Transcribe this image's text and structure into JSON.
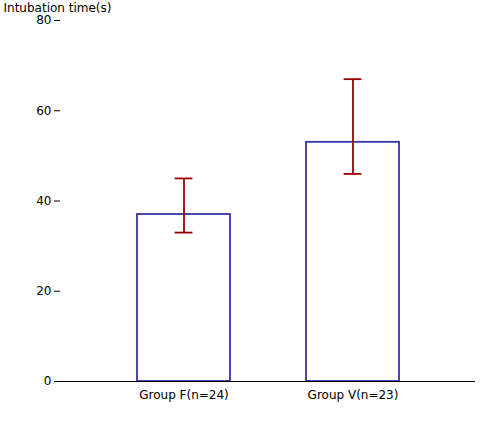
{
  "chart_data": {
    "type": "bar",
    "categories": [
      "Group F(n=24)",
      "Group V(n=23)"
    ],
    "values": [
      37,
      53
    ],
    "color": "#3333AA",
    "error_bars": {
      "lower": [
        33,
        46
      ],
      "upper": [
        45,
        67
      ],
      "color": "#990000"
    },
    "ylabel": "Intubation time(s)",
    "ylim": [
      0,
      80
    ],
    "yticks": [
      0,
      20,
      40,
      60,
      80
    ],
    "grid": false
  }
}
